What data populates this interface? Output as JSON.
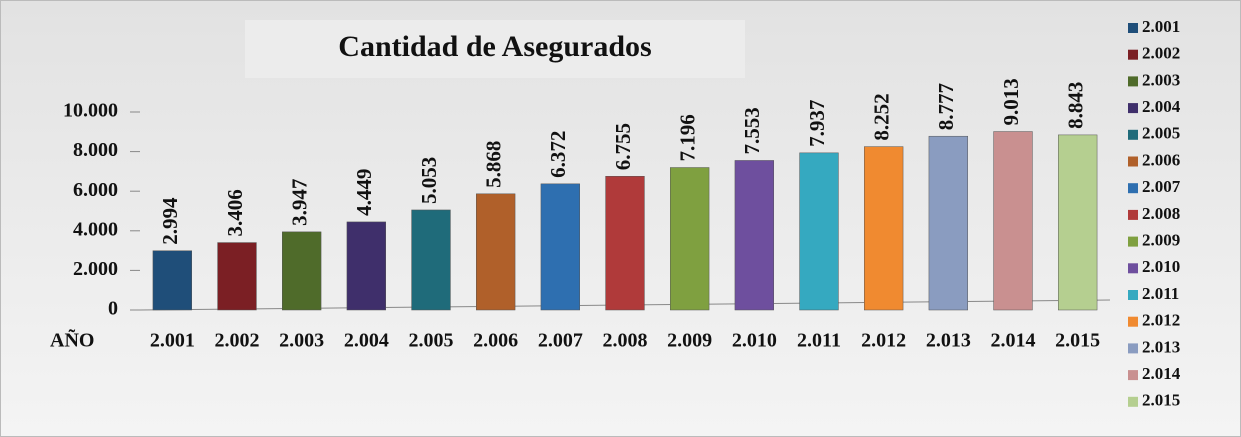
{
  "chart_data": {
    "type": "bar",
    "title": "Cantidad de Asegurados",
    "x_label": "AÑO",
    "categories": [
      "2.001",
      "2.002",
      "2.003",
      "2.004",
      "2.005",
      "2.006",
      "2.007",
      "2.008",
      "2.009",
      "2.010",
      "2.011",
      "2.012",
      "2.013",
      "2.014",
      "2.015"
    ],
    "values": [
      2994,
      3406,
      3947,
      4449,
      5053,
      5868,
      6372,
      6755,
      7196,
      7553,
      7937,
      8252,
      8777,
      9013,
      8843
    ],
    "value_labels": [
      "2.994",
      "3.406",
      "3.947",
      "4.449",
      "5.053",
      "5.868",
      "6.372",
      "6.755",
      "7.196",
      "7.553",
      "7.937",
      "8.252",
      "8.777",
      "9.013",
      "8.843"
    ],
    "colors": [
      "#1f4e79",
      "#7b1f24",
      "#4f6b2a",
      "#3f2f6b",
      "#1f6b7a",
      "#b0602a",
      "#2e6fb0",
      "#b03a3a",
      "#7fa040",
      "#6e4f9e",
      "#35a9c0",
      "#f08a30",
      "#8a9cc0",
      "#c99090",
      "#b5cf90"
    ],
    "ylim": [
      0,
      10000
    ],
    "yticks": [
      0,
      {
        "value": 2000,
        "label": "2.000"
      },
      {
        "value": 4000,
        "label": "4.000"
      },
      {
        "value": 6000,
        "label": "6.000"
      },
      {
        "value": 8000,
        "label": "8.000"
      },
      {
        "value": 10000,
        "label": "10.000"
      }
    ],
    "legend": "right"
  }
}
